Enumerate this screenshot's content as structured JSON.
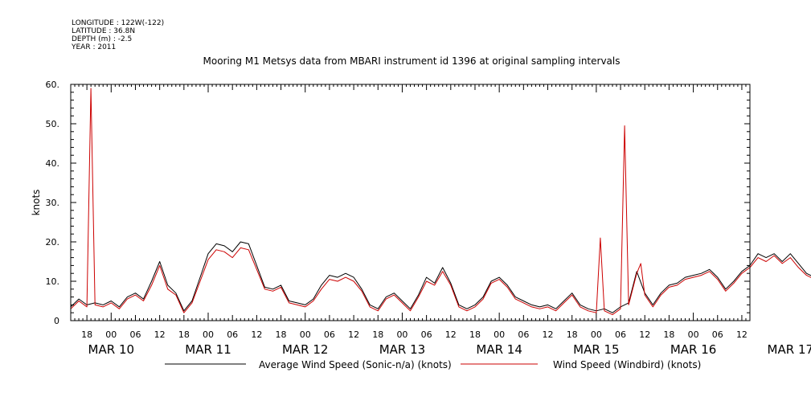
{
  "header": {
    "longitude": "LONGITUDE : 122W(-122)",
    "latitude": "LATITUDE : 36.8N",
    "depth": "DEPTH (m) : -2.5",
    "year": "YEAR : 2011"
  },
  "chart_data": {
    "type": "line",
    "title": "Mooring M1 Metsys data from MBARI instrument id 1396 at original sampling intervals",
    "xlabel": "",
    "ylabel": "knots",
    "ylim": [
      0,
      60
    ],
    "xlim_hours": [
      -10,
      158
    ],
    "y_ticks": [
      "0",
      "10.",
      "20.",
      "30.",
      "40.",
      "50.",
      "60."
    ],
    "hour_ticks": [
      "18",
      "00",
      "06",
      "12",
      "18",
      "00",
      "06",
      "12",
      "18",
      "00",
      "06",
      "12",
      "18",
      "00",
      "06",
      "12",
      "18",
      "00",
      "06",
      "12",
      "18",
      "00",
      "06",
      "12",
      "18",
      "00",
      "06",
      "12"
    ],
    "date_labels": [
      "MAR 10",
      "MAR 11",
      "MAR 12",
      "MAR 13",
      "MAR 14",
      "MAR 15",
      "MAR 16",
      "MAR 17"
    ],
    "grid": false,
    "legend_position": "bottom",
    "colors": {
      "average": "#000000",
      "windbird": "#cc0000"
    },
    "series": [
      {
        "name": "Average Wind Speed (Sonic-n/a) (knots)",
        "color": "#000000",
        "points": [
          [
            "2011-03-09T14:00",
            3.5
          ],
          [
            "2011-03-09T16:00",
            5.5
          ],
          [
            "2011-03-09T18:00",
            4.0
          ],
          [
            "2011-03-09T20:00",
            4.5
          ],
          [
            "2011-03-09T22:00",
            4.0
          ],
          [
            "2011-03-10T00:00",
            5.0
          ],
          [
            "2011-03-10T02:00",
            3.5
          ],
          [
            "2011-03-10T04:00",
            6.0
          ],
          [
            "2011-03-10T06:00",
            7.0
          ],
          [
            "2011-03-10T08:00",
            5.5
          ],
          [
            "2011-03-10T10:00",
            10.0
          ],
          [
            "2011-03-10T12:00",
            15.0
          ],
          [
            "2011-03-10T14:00",
            9.0
          ],
          [
            "2011-03-10T16:00",
            7.0
          ],
          [
            "2011-03-10T18:00",
            2.5
          ],
          [
            "2011-03-10T20:00",
            5.0
          ],
          [
            "2011-03-10T22:00",
            11.0
          ],
          [
            "2011-03-11T00:00",
            17.0
          ],
          [
            "2011-03-11T02:00",
            19.5
          ],
          [
            "2011-03-11T04:00",
            19.0
          ],
          [
            "2011-03-11T06:00",
            17.5
          ],
          [
            "2011-03-11T08:00",
            20.0
          ],
          [
            "2011-03-11T10:00",
            19.5
          ],
          [
            "2011-03-11T12:00",
            14.0
          ],
          [
            "2011-03-11T14:00",
            8.5
          ],
          [
            "2011-03-11T16:00",
            8.0
          ],
          [
            "2011-03-11T18:00",
            9.0
          ],
          [
            "2011-03-11T20:00",
            5.0
          ],
          [
            "2011-03-11T22:00",
            4.5
          ],
          [
            "2011-03-12T00:00",
            4.0
          ],
          [
            "2011-03-12T02:00",
            5.5
          ],
          [
            "2011-03-12T04:00",
            9.0
          ],
          [
            "2011-03-12T06:00",
            11.5
          ],
          [
            "2011-03-12T08:00",
            11.0
          ],
          [
            "2011-03-12T10:00",
            12.0
          ],
          [
            "2011-03-12T12:00",
            11.0
          ],
          [
            "2011-03-12T14:00",
            8.0
          ],
          [
            "2011-03-12T16:00",
            4.0
          ],
          [
            "2011-03-12T18:00",
            3.0
          ],
          [
            "2011-03-12T20:00",
            6.0
          ],
          [
            "2011-03-12T22:00",
            7.0
          ],
          [
            "2011-03-13T00:00",
            5.0
          ],
          [
            "2011-03-13T02:00",
            3.0
          ],
          [
            "2011-03-13T04:00",
            6.5
          ],
          [
            "2011-03-13T06:00",
            11.0
          ],
          [
            "2011-03-13T08:00",
            9.5
          ],
          [
            "2011-03-13T10:00",
            13.5
          ],
          [
            "2011-03-13T12:00",
            9.5
          ],
          [
            "2011-03-13T14:00",
            4.0
          ],
          [
            "2011-03-13T16:00",
            3.0
          ],
          [
            "2011-03-13T18:00",
            4.0
          ],
          [
            "2011-03-13T20:00",
            6.0
          ],
          [
            "2011-03-13T22:00",
            10.0
          ],
          [
            "2011-03-14T00:00",
            11.0
          ],
          [
            "2011-03-14T02:00",
            9.0
          ],
          [
            "2011-03-14T04:00",
            6.0
          ],
          [
            "2011-03-14T06:00",
            5.0
          ],
          [
            "2011-03-14T08:00",
            4.0
          ],
          [
            "2011-03-14T10:00",
            3.5
          ],
          [
            "2011-03-14T12:00",
            4.0
          ],
          [
            "2011-03-14T14:00",
            3.0
          ],
          [
            "2011-03-14T16:00",
            5.0
          ],
          [
            "2011-03-14T18:00",
            7.0
          ],
          [
            "2011-03-14T20:00",
            4.0
          ],
          [
            "2011-03-14T22:00",
            3.0
          ],
          [
            "2011-03-15T00:00",
            2.5
          ],
          [
            "2011-03-15T02:00",
            3.0
          ],
          [
            "2011-03-15T04:00",
            2.0
          ],
          [
            "2011-03-15T06:00",
            3.5
          ],
          [
            "2011-03-15T08:00",
            4.5
          ],
          [
            "2011-03-15T10:00",
            12.5
          ],
          [
            "2011-03-15T12:00",
            7.0
          ],
          [
            "2011-03-15T14:00",
            4.0
          ],
          [
            "2011-03-15T16:00",
            7.0
          ],
          [
            "2011-03-15T18:00",
            9.0
          ],
          [
            "2011-03-15T20:00",
            9.5
          ],
          [
            "2011-03-15T22:00",
            11.0
          ],
          [
            "2011-03-16T00:00",
            11.5
          ],
          [
            "2011-03-16T02:00",
            12.0
          ],
          [
            "2011-03-16T04:00",
            13.0
          ],
          [
            "2011-03-16T06:00",
            11.0
          ],
          [
            "2011-03-16T08:00",
            8.0
          ],
          [
            "2011-03-16T10:00",
            10.0
          ],
          [
            "2011-03-16T12:00",
            12.5
          ],
          [
            "2011-03-16T14:00",
            14.0
          ],
          [
            "2011-03-16T16:00",
            17.0
          ],
          [
            "2011-03-16T18:00",
            16.0
          ],
          [
            "2011-03-16T20:00",
            17.0
          ],
          [
            "2011-03-16T22:00",
            15.0
          ],
          [
            "2011-03-17T00:00",
            17.0
          ],
          [
            "2011-03-17T02:00",
            14.5
          ],
          [
            "2011-03-17T04:00",
            12.0
          ],
          [
            "2011-03-17T06:00",
            11.0
          ],
          [
            "2011-03-17T08:00",
            10.0
          ],
          [
            "2011-03-17T10:00",
            7.0
          ],
          [
            "2011-03-17T12:00",
            10.0
          ],
          [
            "2011-03-17T14:00",
            8.0
          ]
        ]
      },
      {
        "name": "Wind Speed (Windbird) (knots)",
        "color": "#cc0000",
        "points": [
          [
            "2011-03-09T14:00",
            3.0
          ],
          [
            "2011-03-09T16:00",
            5.0
          ],
          [
            "2011-03-09T18:00",
            3.5
          ],
          [
            "2011-03-09T19:00",
            59.0
          ],
          [
            "2011-03-09T20:00",
            4.0
          ],
          [
            "2011-03-09T22:00",
            3.5
          ],
          [
            "2011-03-10T00:00",
            4.5
          ],
          [
            "2011-03-10T02:00",
            3.0
          ],
          [
            "2011-03-10T04:00",
            5.5
          ],
          [
            "2011-03-10T06:00",
            6.5
          ],
          [
            "2011-03-10T08:00",
            5.0
          ],
          [
            "2011-03-10T10:00",
            9.0
          ],
          [
            "2011-03-10T12:00",
            14.0
          ],
          [
            "2011-03-10T14:00",
            8.0
          ],
          [
            "2011-03-10T16:00",
            6.5
          ],
          [
            "2011-03-10T18:00",
            2.0
          ],
          [
            "2011-03-10T20:00",
            4.5
          ],
          [
            "2011-03-10T22:00",
            10.0
          ],
          [
            "2011-03-11T00:00",
            15.5
          ],
          [
            "2011-03-11T02:00",
            18.0
          ],
          [
            "2011-03-11T04:00",
            17.5
          ],
          [
            "2011-03-11T06:00",
            16.0
          ],
          [
            "2011-03-11T08:00",
            18.5
          ],
          [
            "2011-03-11T10:00",
            18.0
          ],
          [
            "2011-03-11T12:00",
            13.0
          ],
          [
            "2011-03-11T14:00",
            8.0
          ],
          [
            "2011-03-11T16:00",
            7.5
          ],
          [
            "2011-03-11T18:00",
            8.5
          ],
          [
            "2011-03-11T20:00",
            4.5
          ],
          [
            "2011-03-11T22:00",
            4.0
          ],
          [
            "2011-03-12T00:00",
            3.5
          ],
          [
            "2011-03-12T02:00",
            5.0
          ],
          [
            "2011-03-12T04:00",
            8.0
          ],
          [
            "2011-03-12T06:00",
            10.5
          ],
          [
            "2011-03-12T08:00",
            10.0
          ],
          [
            "2011-03-12T10:00",
            11.0
          ],
          [
            "2011-03-12T12:00",
            10.0
          ],
          [
            "2011-03-12T14:00",
            7.5
          ],
          [
            "2011-03-12T16:00",
            3.5
          ],
          [
            "2011-03-12T18:00",
            2.5
          ],
          [
            "2011-03-12T20:00",
            5.5
          ],
          [
            "2011-03-12T22:00",
            6.5
          ],
          [
            "2011-03-13T00:00",
            4.5
          ],
          [
            "2011-03-13T02:00",
            2.5
          ],
          [
            "2011-03-13T04:00",
            6.0
          ],
          [
            "2011-03-13T06:00",
            10.0
          ],
          [
            "2011-03-13T08:00",
            9.0
          ],
          [
            "2011-03-13T10:00",
            12.5
          ],
          [
            "2011-03-13T12:00",
            9.0
          ],
          [
            "2011-03-13T14:00",
            3.5
          ],
          [
            "2011-03-13T16:00",
            2.5
          ],
          [
            "2011-03-13T18:00",
            3.5
          ],
          [
            "2011-03-13T20:00",
            5.5
          ],
          [
            "2011-03-13T22:00",
            9.5
          ],
          [
            "2011-03-14T00:00",
            10.5
          ],
          [
            "2011-03-14T02:00",
            8.5
          ],
          [
            "2011-03-14T04:00",
            5.5
          ],
          [
            "2011-03-14T06:00",
            4.5
          ],
          [
            "2011-03-14T08:00",
            3.5
          ],
          [
            "2011-03-14T10:00",
            3.0
          ],
          [
            "2011-03-14T12:00",
            3.5
          ],
          [
            "2011-03-14T14:00",
            2.5
          ],
          [
            "2011-03-14T16:00",
            4.5
          ],
          [
            "2011-03-14T18:00",
            6.5
          ],
          [
            "2011-03-14T20:00",
            3.5
          ],
          [
            "2011-03-14T22:00",
            2.5
          ],
          [
            "2011-03-15T00:00",
            2.0
          ],
          [
            "2011-03-15T01:00",
            21.0
          ],
          [
            "2011-03-15T02:00",
            2.5
          ],
          [
            "2011-03-15T04:00",
            1.5
          ],
          [
            "2011-03-15T06:00",
            3.0
          ],
          [
            "2011-03-15T07:00",
            49.5
          ],
          [
            "2011-03-15T08:00",
            4.0
          ],
          [
            "2011-03-15T10:00",
            12.0
          ],
          [
            "2011-03-15T11:00",
            14.5
          ],
          [
            "2011-03-15T12:00",
            6.5
          ],
          [
            "2011-03-15T14:00",
            3.5
          ],
          [
            "2011-03-15T16:00",
            6.5
          ],
          [
            "2011-03-15T18:00",
            8.5
          ],
          [
            "2011-03-15T20:00",
            9.0
          ],
          [
            "2011-03-15T22:00",
            10.5
          ],
          [
            "2011-03-16T00:00",
            11.0
          ],
          [
            "2011-03-16T02:00",
            11.5
          ],
          [
            "2011-03-16T04:00",
            12.5
          ],
          [
            "2011-03-16T06:00",
            10.5
          ],
          [
            "2011-03-16T08:00",
            7.5
          ],
          [
            "2011-03-16T10:00",
            9.5
          ],
          [
            "2011-03-16T12:00",
            12.0
          ],
          [
            "2011-03-16T14:00",
            13.5
          ],
          [
            "2011-03-16T16:00",
            16.0
          ],
          [
            "2011-03-16T18:00",
            15.0
          ],
          [
            "2011-03-16T20:00",
            16.5
          ],
          [
            "2011-03-16T22:00",
            14.5
          ],
          [
            "2011-03-17T00:00",
            16.0
          ],
          [
            "2011-03-17T02:00",
            13.5
          ],
          [
            "2011-03-17T04:00",
            11.5
          ],
          [
            "2011-03-17T06:00",
            10.5
          ],
          [
            "2011-03-17T08:00",
            9.0
          ],
          [
            "2011-03-17T10:00",
            6.0
          ],
          [
            "2011-03-17T12:00",
            9.5
          ],
          [
            "2011-03-17T14:00",
            7.0
          ]
        ]
      }
    ]
  }
}
